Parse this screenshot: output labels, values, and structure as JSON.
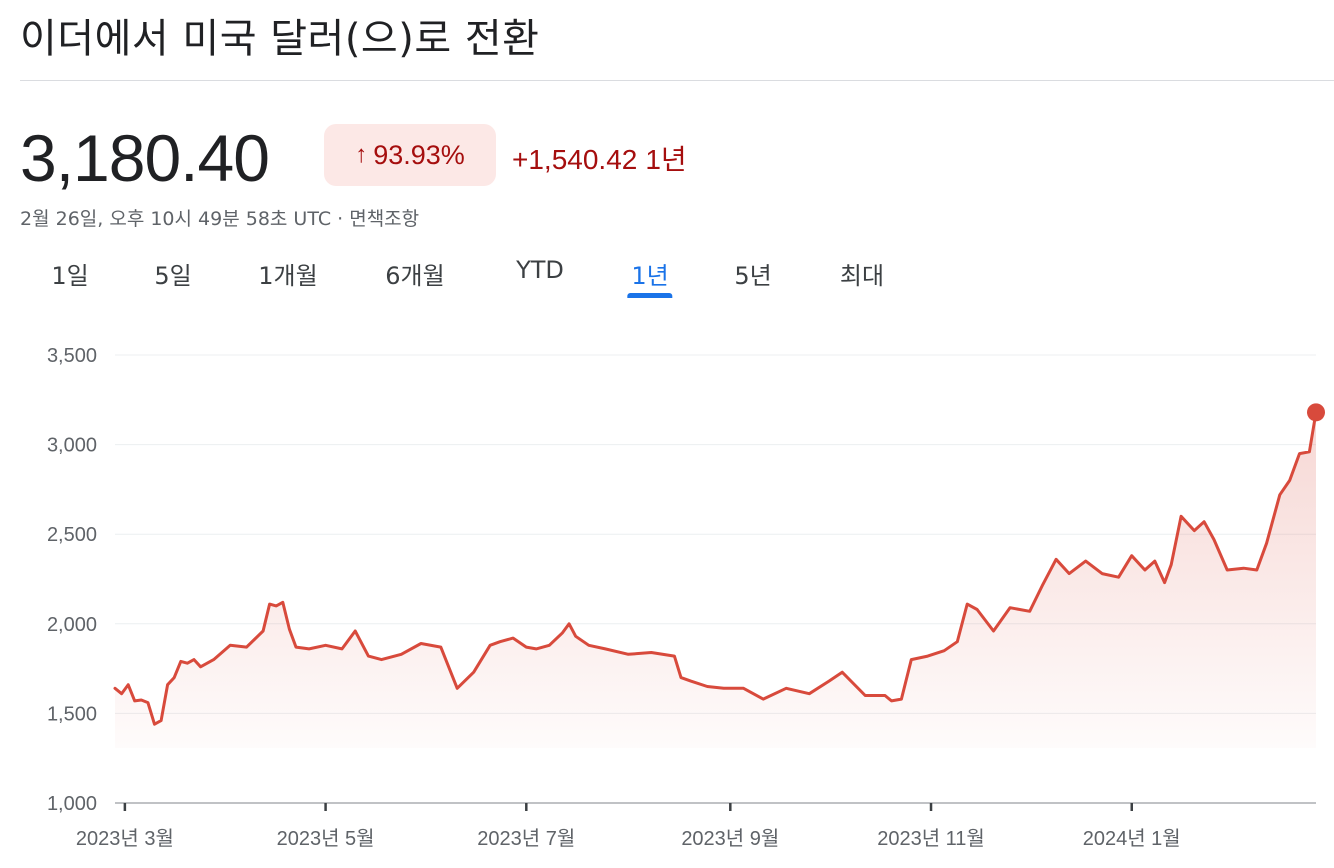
{
  "header": {
    "title": "이더에서 미국 달러(으)로 전환"
  },
  "quote": {
    "price": "3,180.40",
    "percent_change": "93.93%",
    "direction": "up",
    "abs_change": "+1,540.42",
    "period": "1년",
    "timestamp": "2월 26일, 오후 10시 49분 58초 UTC · 면책조항"
  },
  "tabs": [
    {
      "label": "1일",
      "active": false
    },
    {
      "label": "5일",
      "active": false
    },
    {
      "label": "1개월",
      "active": false
    },
    {
      "label": "6개월",
      "active": false
    },
    {
      "label": "YTD",
      "active": false
    },
    {
      "label": "1년",
      "active": true
    },
    {
      "label": "5년",
      "active": false
    },
    {
      "label": "최대",
      "active": false
    }
  ],
  "colors": {
    "line": "#d84a3c",
    "badge_bg": "#fce8e6",
    "badge_text": "#a50e0e",
    "active_tab": "#1a73e8",
    "grid": "#eceff1"
  },
  "chart_data": {
    "type": "area",
    "y_ticks": [
      1000,
      1500,
      2000,
      2500,
      3000,
      3500
    ],
    "y_tick_labels": [
      "1,000",
      "1,500",
      "2,000",
      "2,500",
      "3,000",
      "3,500"
    ],
    "ylim": [
      1000,
      3500
    ],
    "xlim": [
      "2023-02-26",
      "2024-02-26"
    ],
    "x_ticks": [
      "2023-03-01",
      "2023-05-01",
      "2023-07-01",
      "2023-09-01",
      "2023-11-01",
      "2024-01-01"
    ],
    "x_tick_labels": [
      "2023년 3월",
      "2023년 5월",
      "2023년 7월",
      "2023년 9월",
      "2023년 11월",
      "2024년 1월"
    ],
    "grid": true,
    "x": [
      "2023-02-26",
      "2023-02-28",
      "2023-03-02",
      "2023-03-04",
      "2023-03-06",
      "2023-03-08",
      "2023-03-10",
      "2023-03-12",
      "2023-03-14",
      "2023-03-16",
      "2023-03-18",
      "2023-03-20",
      "2023-03-22",
      "2023-03-24",
      "2023-03-28",
      "2023-04-02",
      "2023-04-07",
      "2023-04-12",
      "2023-04-14",
      "2023-04-16",
      "2023-04-18",
      "2023-04-20",
      "2023-04-22",
      "2023-04-26",
      "2023-05-01",
      "2023-05-06",
      "2023-05-10",
      "2023-05-14",
      "2023-05-18",
      "2023-05-24",
      "2023-05-30",
      "2023-06-05",
      "2023-06-10",
      "2023-06-15",
      "2023-06-20",
      "2023-06-23",
      "2023-06-27",
      "2023-07-01",
      "2023-07-04",
      "2023-07-08",
      "2023-07-12",
      "2023-07-14",
      "2023-07-16",
      "2023-07-20",
      "2023-07-25",
      "2023-08-01",
      "2023-08-08",
      "2023-08-15",
      "2023-08-17",
      "2023-08-20",
      "2023-08-25",
      "2023-08-30",
      "2023-09-05",
      "2023-09-11",
      "2023-09-18",
      "2023-09-25",
      "2023-10-01",
      "2023-10-05",
      "2023-10-12",
      "2023-10-18",
      "2023-10-20",
      "2023-10-23",
      "2023-10-26",
      "2023-10-31",
      "2023-11-05",
      "2023-11-09",
      "2023-11-12",
      "2023-11-15",
      "2023-11-20",
      "2023-11-25",
      "2023-12-01",
      "2023-12-05",
      "2023-12-09",
      "2023-12-13",
      "2023-12-18",
      "2023-12-23",
      "2023-12-28",
      "2024-01-01",
      "2024-01-05",
      "2024-01-08",
      "2024-01-11",
      "2024-01-13",
      "2024-01-16",
      "2024-01-20",
      "2024-01-23",
      "2024-01-26",
      "2024-01-30",
      "2024-02-04",
      "2024-02-08",
      "2024-02-11",
      "2024-02-15",
      "2024-02-18",
      "2024-02-21",
      "2024-02-24",
      "2024-02-26"
    ],
    "values": [
      1640,
      1610,
      1660,
      1570,
      1575,
      1560,
      1440,
      1460,
      1660,
      1700,
      1790,
      1780,
      1800,
      1760,
      1800,
      1880,
      1870,
      1960,
      2110,
      2100,
      2120,
      1970,
      1870,
      1860,
      1880,
      1860,
      1960,
      1820,
      1800,
      1830,
      1890,
      1870,
      1640,
      1730,
      1880,
      1900,
      1920,
      1870,
      1860,
      1880,
      1950,
      2000,
      1930,
      1880,
      1860,
      1830,
      1840,
      1820,
      1700,
      1680,
      1650,
      1640,
      1640,
      1580,
      1640,
      1610,
      1680,
      1730,
      1600,
      1600,
      1570,
      1580,
      1800,
      1820,
      1850,
      1900,
      2110,
      2080,
      1960,
      2090,
      2070,
      2220,
      2360,
      2280,
      2350,
      2280,
      2260,
      2380,
      2300,
      2350,
      2230,
      2330,
      2600,
      2520,
      2570,
      2470,
      2300,
      2310,
      2300,
      2450,
      2720,
      2800,
      2950,
      2960,
      3180
    ]
  }
}
